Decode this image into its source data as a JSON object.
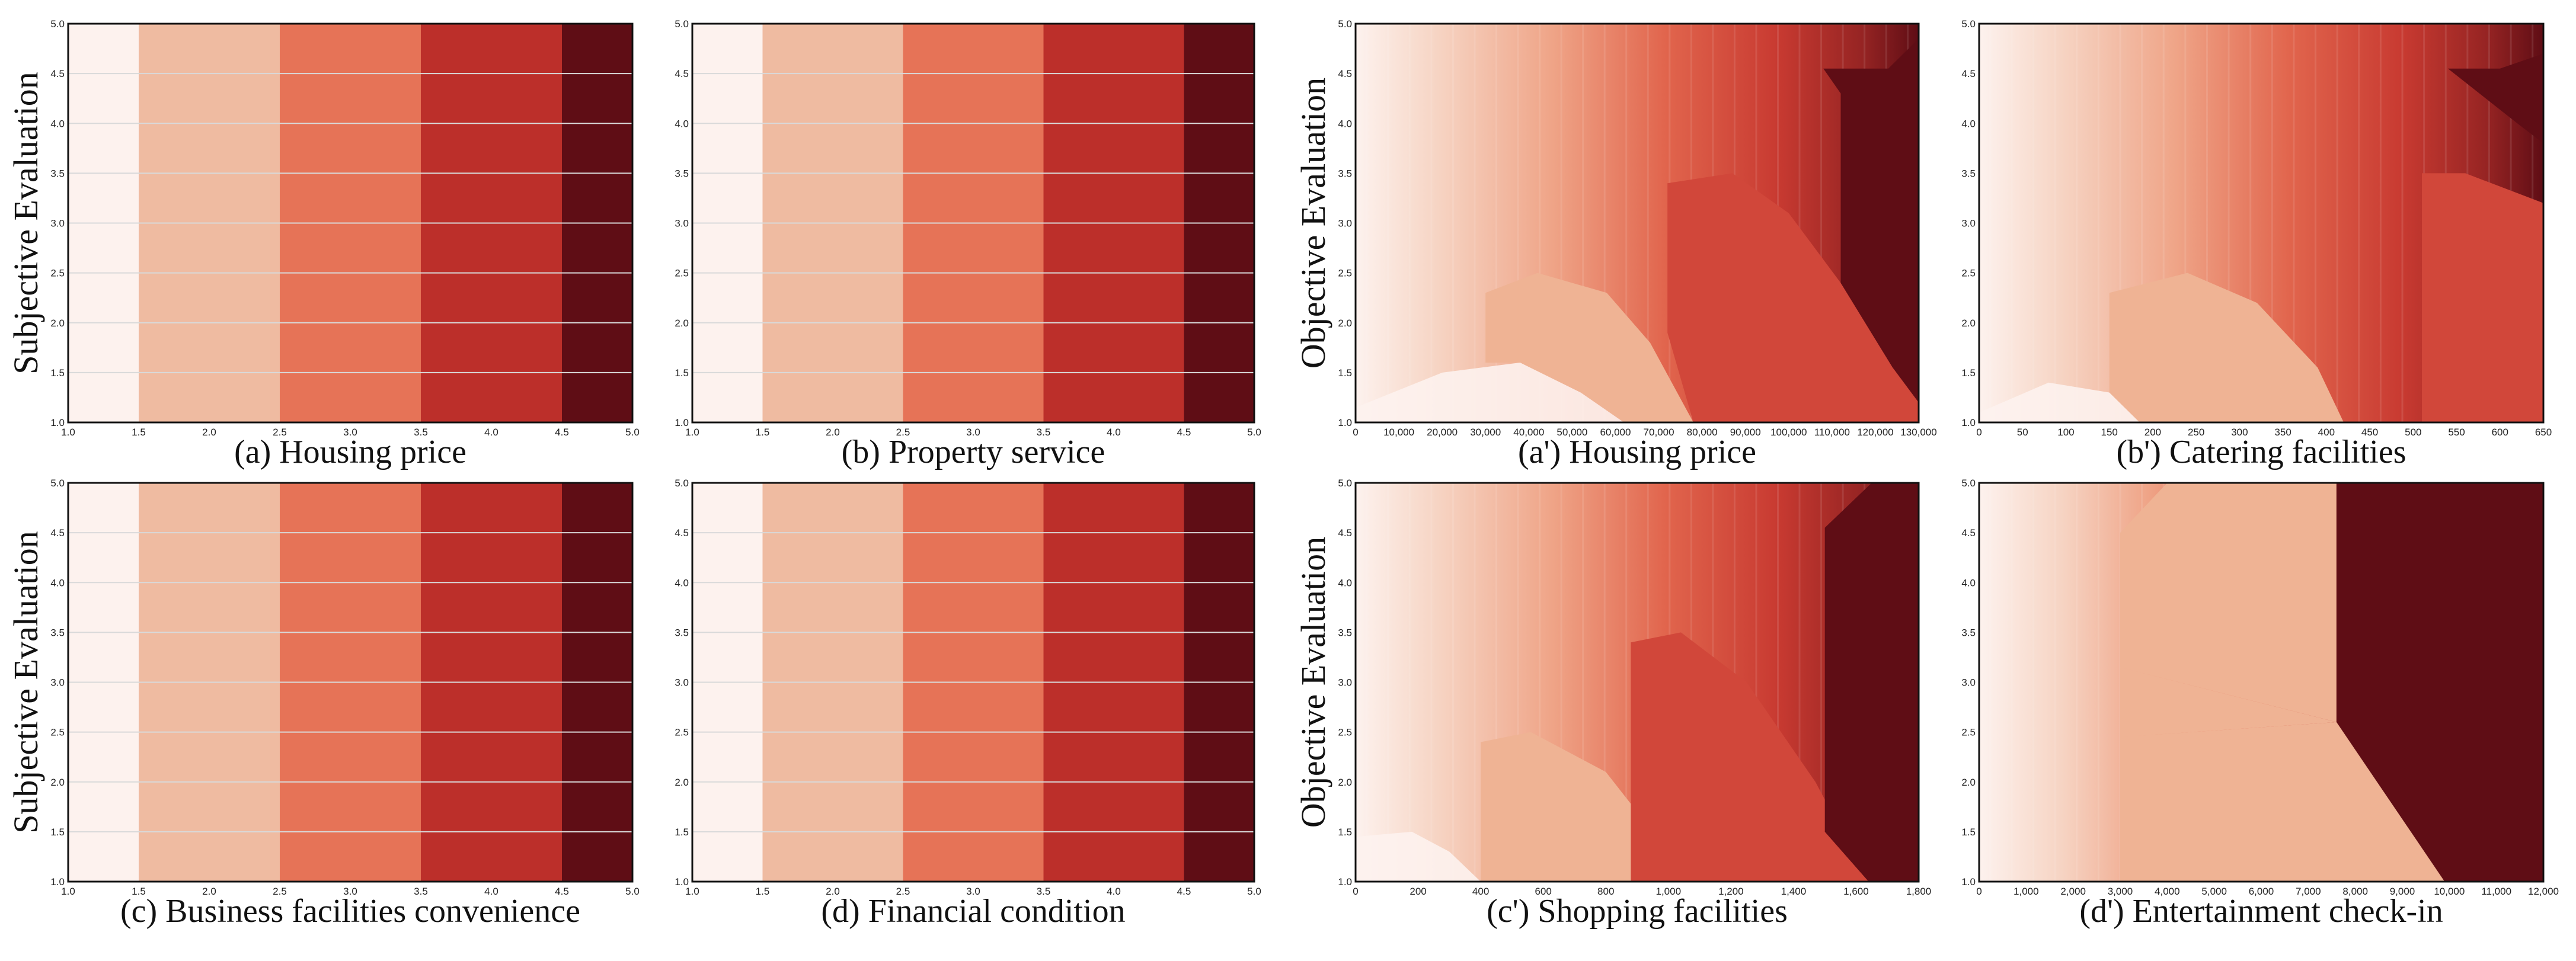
{
  "palette": [
    "#fdf2ee",
    "#efbba1",
    "#e67357",
    "#bc2f2a",
    "#5f0d15"
  ],
  "chart_data": [
    {
      "id": "a",
      "type": "heatmap",
      "row": 0,
      "col": 0,
      "title": "(a) Housing price",
      "ylabel": "Subjective Evaluation",
      "xlim": [
        1.0,
        5.0
      ],
      "ylim": [
        1.0,
        5.0
      ],
      "xticks": [
        "1.0",
        "1.5",
        "2.0",
        "2.5",
        "3.0",
        "3.5",
        "4.0",
        "4.5",
        "5.0"
      ],
      "yticks": [
        "1.0",
        "1.5",
        "2.0",
        "2.5",
        "3.0",
        "3.5",
        "4.0",
        "4.5",
        "5.0"
      ],
      "grid": true,
      "bands": [
        {
          "x0": 1.0,
          "x1": 1.5,
          "level": 0
        },
        {
          "x0": 1.5,
          "x1": 2.5,
          "level": 1
        },
        {
          "x0": 2.5,
          "x1": 3.5,
          "level": 2
        },
        {
          "x0": 3.5,
          "x1": 4.5,
          "level": 3
        },
        {
          "x0": 4.5,
          "x1": 5.0,
          "level": 4
        }
      ]
    },
    {
      "id": "b",
      "type": "heatmap",
      "row": 0,
      "col": 1,
      "title": "(b) Property service",
      "ylabel": "",
      "xlim": [
        1.0,
        5.0
      ],
      "ylim": [
        1.0,
        5.0
      ],
      "xticks": [
        "1.0",
        "1.5",
        "2.0",
        "2.5",
        "3.0",
        "3.5",
        "4.0",
        "4.5",
        "5.0"
      ],
      "yticks": [
        "1.0",
        "1.5",
        "2.0",
        "2.5",
        "3.0",
        "3.5",
        "4.0",
        "4.5",
        "5.0"
      ],
      "grid": true,
      "bands": [
        {
          "x0": 1.0,
          "x1": 1.5,
          "level": 0
        },
        {
          "x0": 1.5,
          "x1": 2.5,
          "level": 1
        },
        {
          "x0": 2.5,
          "x1": 3.5,
          "level": 2
        },
        {
          "x0": 3.5,
          "x1": 4.5,
          "level": 3
        },
        {
          "x0": 4.5,
          "x1": 5.0,
          "level": 4
        }
      ]
    },
    {
      "id": "c",
      "type": "heatmap",
      "row": 1,
      "col": 0,
      "title": "(c) Business facilities convenience",
      "ylabel": "Subjective Evaluation",
      "xlim": [
        1.0,
        5.0
      ],
      "ylim": [
        1.0,
        5.0
      ],
      "xticks": [
        "1.0",
        "1.5",
        "2.0",
        "2.5",
        "3.0",
        "3.5",
        "4.0",
        "4.5",
        "5.0"
      ],
      "yticks": [
        "1.0",
        "1.5",
        "2.0",
        "2.5",
        "3.0",
        "3.5",
        "4.0",
        "4.5",
        "5.0"
      ],
      "grid": true,
      "bands": [
        {
          "x0": 1.0,
          "x1": 1.5,
          "level": 0
        },
        {
          "x0": 1.5,
          "x1": 2.5,
          "level": 1
        },
        {
          "x0": 2.5,
          "x1": 3.5,
          "level": 2
        },
        {
          "x0": 3.5,
          "x1": 4.5,
          "level": 3
        },
        {
          "x0": 4.5,
          "x1": 5.0,
          "level": 4
        }
      ]
    },
    {
      "id": "d",
      "type": "heatmap",
      "row": 1,
      "col": 1,
      "title": "(d) Financial condition",
      "ylabel": "",
      "xlim": [
        1.0,
        5.0
      ],
      "ylim": [
        1.0,
        5.0
      ],
      "xticks": [
        "1.0",
        "1.5",
        "2.0",
        "2.5",
        "3.0",
        "3.5",
        "4.0",
        "4.5",
        "5.0"
      ],
      "yticks": [
        "1.0",
        "1.5",
        "2.0",
        "2.5",
        "3.0",
        "3.5",
        "4.0",
        "4.5",
        "5.0"
      ],
      "grid": true,
      "bands": [
        {
          "x0": 1.0,
          "x1": 1.5,
          "level": 0
        },
        {
          "x0": 1.5,
          "x1": 2.5,
          "level": 1
        },
        {
          "x0": 2.5,
          "x1": 3.5,
          "level": 2
        },
        {
          "x0": 3.5,
          "x1": 4.5,
          "level": 3
        },
        {
          "x0": 4.5,
          "x1": 5.0,
          "level": 4
        }
      ]
    },
    {
      "id": "a-prime",
      "type": "heatmap",
      "row": 0,
      "col": 2,
      "title": "(a') Housing price",
      "ylabel": "Objective Evaluation",
      "xlim": [
        0,
        130000
      ],
      "ylim": [
        1.0,
        5.0
      ],
      "xticks": [
        "0",
        "10,000",
        "20,000",
        "30,000",
        "40,000",
        "50,000",
        "60,000",
        "70,000",
        "80,000",
        "90,000",
        "100,000",
        "110,000",
        "120,000",
        "130,000"
      ],
      "yticks": [
        "1.0",
        "1.5",
        "2.0",
        "2.5",
        "3.0",
        "3.5",
        "4.0",
        "4.5",
        "5.0"
      ],
      "grid": false,
      "gradient_stops": [
        0.0,
        0.15,
        0.35,
        0.55,
        0.75,
        0.9,
        1.0
      ],
      "regions": [
        {
          "level": 0,
          "points": [
            [
              0,
              1.0
            ],
            [
              0,
              1.15
            ],
            [
              20000,
              1.5
            ],
            [
              38000,
              1.6
            ],
            [
              52000,
              1.3
            ],
            [
              62000,
              1.0
            ]
          ]
        },
        {
          "level": 1,
          "points": [
            [
              30000,
              2.3
            ],
            [
              42000,
              2.5
            ],
            [
              58000,
              2.3
            ],
            [
              68000,
              1.8
            ],
            [
              78000,
              1.0
            ],
            [
              62000,
              1.0
            ],
            [
              52000,
              1.3
            ],
            [
              38000,
              1.6
            ],
            [
              30000,
              1.6
            ]
          ]
        },
        {
          "level": 3,
          "points": [
            [
              72000,
              3.4
            ],
            [
              87000,
              3.5
            ],
            [
              100000,
              3.1
            ],
            [
              112000,
              2.4
            ],
            [
              124000,
              1.55
            ],
            [
              130000,
              1.25
            ],
            [
              130000,
              1.0
            ],
            [
              78000,
              1.0
            ],
            [
              72000,
              1.9
            ]
          ]
        },
        {
          "level": 4,
          "points": [
            [
              108000,
              4.55
            ],
            [
              123000,
              4.55
            ],
            [
              130000,
              4.85
            ],
            [
              130000,
              1.2
            ],
            [
              124000,
              1.55
            ],
            [
              112000,
              2.4
            ],
            [
              112000,
              3.5
            ],
            [
              112000,
              4.3
            ]
          ]
        }
      ]
    },
    {
      "id": "b-prime",
      "type": "heatmap",
      "row": 0,
      "col": 3,
      "title": "(b') Catering facilities",
      "ylabel": "",
      "xlim": [
        0,
        650
      ],
      "ylim": [
        1.0,
        5.0
      ],
      "xticks": [
        "0",
        "50",
        "100",
        "150",
        "200",
        "250",
        "300",
        "350",
        "400",
        "450",
        "500",
        "550",
        "600",
        "650"
      ],
      "yticks": [
        "1.0",
        "1.5",
        "2.0",
        "2.5",
        "3.0",
        "3.5",
        "4.0",
        "4.5",
        "5.0"
      ],
      "grid": false,
      "gradient_stops": [
        0.0,
        0.15,
        0.35,
        0.55,
        0.75,
        0.9,
        1.0
      ],
      "regions": [
        {
          "level": 0,
          "points": [
            [
              0,
              1.0
            ],
            [
              0,
              1.1
            ],
            [
              80,
              1.4
            ],
            [
              150,
              1.3
            ],
            [
              185,
              1.0
            ]
          ]
        },
        {
          "level": 1,
          "points": [
            [
              150,
              2.3
            ],
            [
              240,
              2.5
            ],
            [
              320,
              2.2
            ],
            [
              390,
              1.55
            ],
            [
              420,
              1.0
            ],
            [
              185,
              1.0
            ],
            [
              150,
              1.3
            ]
          ]
        },
        {
          "level": 3,
          "points": [
            [
              510,
              3.5
            ],
            [
              560,
              3.5
            ],
            [
              650,
              3.2
            ],
            [
              650,
              1.0
            ],
            [
              510,
              1.0
            ]
          ]
        },
        {
          "level": 4,
          "points": [
            [
              540,
              4.55
            ],
            [
              600,
              4.55
            ],
            [
              650,
              4.7
            ],
            [
              650,
              3.8
            ],
            [
              620,
              4.0
            ]
          ]
        }
      ]
    },
    {
      "id": "c-prime",
      "type": "heatmap",
      "row": 1,
      "col": 2,
      "title": "(c') Shopping facilities",
      "ylabel": "Objective Evaluation",
      "xlim": [
        0,
        1800
      ],
      "ylim": [
        1.0,
        5.0
      ],
      "xticks": [
        "0",
        "200",
        "400",
        "600",
        "800",
        "1,000",
        "1,200",
        "1,400",
        "1,600",
        "1,800"
      ],
      "yticks": [
        "1.0",
        "1.5",
        "2.0",
        "2.5",
        "3.0",
        "3.5",
        "4.0",
        "4.5",
        "5.0"
      ],
      "grid": false,
      "gradient_stops": [
        0.0,
        0.15,
        0.35,
        0.55,
        0.75,
        0.9,
        1.0
      ],
      "regions": [
        {
          "level": 0,
          "points": [
            [
              0,
              1.0
            ],
            [
              0,
              1.45
            ],
            [
              180,
              1.5
            ],
            [
              300,
              1.3
            ],
            [
              400,
              1.0
            ]
          ]
        },
        {
          "level": 1,
          "points": [
            [
              400,
              2.4
            ],
            [
              560,
              2.5
            ],
            [
              800,
              2.1
            ],
            [
              1000,
              1.3
            ],
            [
              1040,
              1.0
            ],
            [
              400,
              1.0
            ]
          ]
        },
        {
          "level": 3,
          "points": [
            [
              880,
              3.4
            ],
            [
              1040,
              3.5
            ],
            [
              1250,
              3.0
            ],
            [
              1470,
              2.0
            ],
            [
              1640,
              1.0
            ],
            [
              1040,
              1.0
            ],
            [
              880,
              1.0
            ]
          ]
        },
        {
          "level": 4,
          "points": [
            [
              1500,
              4.55
            ],
            [
              1650,
              5.0
            ],
            [
              1800,
              5.0
            ],
            [
              1800,
              1.0
            ],
            [
              1640,
              1.0
            ],
            [
              1500,
              1.5
            ]
          ]
        }
      ]
    },
    {
      "id": "d-prime",
      "type": "heatmap",
      "row": 1,
      "col": 3,
      "title": "(d') Entertainment check-in",
      "ylabel": "",
      "xlim": [
        0,
        12000
      ],
      "ylim": [
        1.0,
        5.0
      ],
      "xticks": [
        "0",
        "1,000",
        "2,000",
        "3,000",
        "4,000",
        "5,000",
        "6,000",
        "7,000",
        "8,000",
        "9,000",
        "10,000",
        "11,000",
        "12,000"
      ],
      "yticks": [
        "1.0",
        "1.5",
        "2.0",
        "2.5",
        "3.0",
        "3.5",
        "4.0",
        "4.5",
        "5.0"
      ],
      "grid": false,
      "gradient_stops": [
        0.0,
        0.15,
        0.3,
        0.45,
        0.6,
        0.65,
        0.66
      ],
      "regions": [
        {
          "level": 1,
          "points": [
            [
              3000,
              1.0
            ],
            [
              3000,
              2.45
            ],
            [
              7600,
              2.6
            ],
            [
              9000,
              1.85
            ],
            [
              9900,
              1.0
            ]
          ]
        },
        {
          "level": 1,
          "points": [
            [
              3000,
              2.45
            ],
            [
              3000,
              3.15
            ],
            [
              7600,
              2.6
            ]
          ]
        },
        {
          "level": 1,
          "points": [
            [
              3000,
              3.15
            ],
            [
              3000,
              4.5
            ],
            [
              4000,
              5.0
            ],
            [
              7600,
              5.0
            ],
            [
              7600,
              2.6
            ]
          ]
        },
        {
          "level": 4,
          "points": [
            [
              7600,
              5.0
            ],
            [
              12000,
              5.0
            ],
            [
              12000,
              1.0
            ],
            [
              9900,
              1.0
            ],
            [
              7600,
              2.6
            ]
          ]
        }
      ]
    }
  ]
}
